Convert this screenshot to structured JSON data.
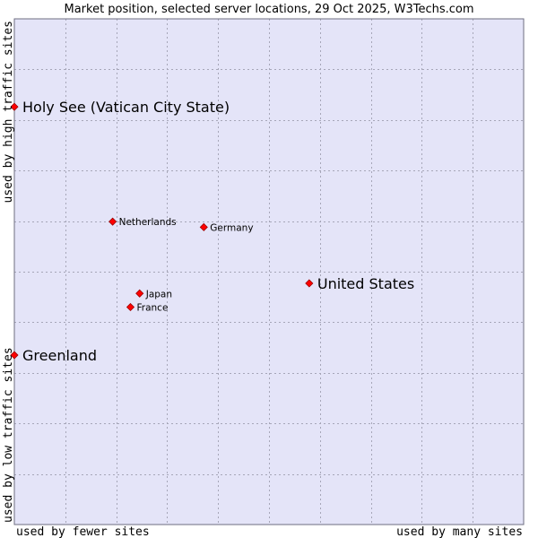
{
  "chart_data": {
    "type": "scatter",
    "title": "Market position, selected server locations, 29 Oct 2025, W3Techs.com",
    "xlabel_left": "used by fewer sites",
    "xlabel_right": "used by many sites",
    "ylabel_bottom": "used by low traffic sites",
    "ylabel_top": "used by high traffic sites",
    "xlim": [
      0,
      100
    ],
    "ylim": [
      0,
      100
    ],
    "grid": true,
    "x_gridlines": [
      10,
      20,
      30,
      40,
      50,
      60,
      70,
      80,
      90
    ],
    "y_gridlines": [
      10,
      20,
      30,
      40,
      50,
      60,
      70,
      80,
      90
    ],
    "colors": {
      "plot_background": "#e4e4f8",
      "grid": "#a6a6b8",
      "border": "#6e6e80",
      "marker": "#ff0000",
      "marker_edge": "#990000"
    },
    "points": [
      {
        "name": "Holy See (Vatican City State)",
        "x": 0,
        "y": 82.6,
        "size": "large"
      },
      {
        "name": "Netherlands",
        "x": 19.3,
        "y": 59.9,
        "size": "small"
      },
      {
        "name": "Germany",
        "x": 37.2,
        "y": 58.8,
        "size": "small"
      },
      {
        "name": "United States",
        "x": 57.9,
        "y": 47.7,
        "size": "large"
      },
      {
        "name": "Japan",
        "x": 24.6,
        "y": 45.7,
        "size": "small"
      },
      {
        "name": "France",
        "x": 22.8,
        "y": 43.0,
        "size": "small"
      },
      {
        "name": "Greenland",
        "x": 0,
        "y": 33.5,
        "size": "large"
      }
    ]
  }
}
